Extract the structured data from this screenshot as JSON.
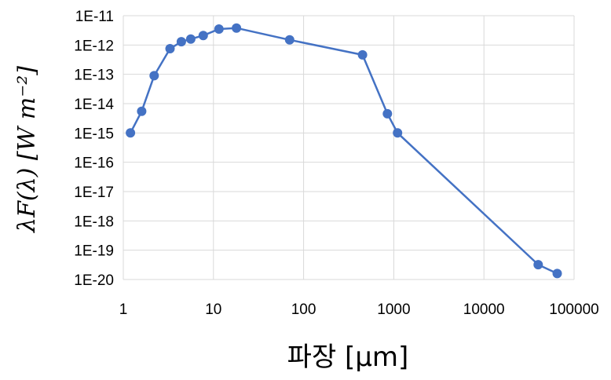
{
  "chart_data": {
    "type": "scatter",
    "title": "",
    "xlabel": "파장 [μm]",
    "ylabel": "λF(λ)  [W m⁻²]",
    "x_scale": "log",
    "y_scale": "log",
    "xlim": [
      1,
      100000
    ],
    "ylim": [
      1e-20,
      1e-11
    ],
    "x_ticks": [
      "1",
      "10",
      "100",
      "1000",
      "10000",
      "100000"
    ],
    "y_ticks": [
      "1E-11",
      "1E-12",
      "1E-13",
      "1E-14",
      "1E-15",
      "1E-16",
      "1E-17",
      "1E-18",
      "1E-19",
      "1E-20"
    ],
    "grid": true,
    "legend": "none",
    "series": [
      {
        "color": "#4472c4",
        "style": "line with circle markers",
        "points": [
          {
            "x": 1.2,
            "y": 1e-15
          },
          {
            "x": 1.6,
            "y": 5.5e-15
          },
          {
            "x": 2.2,
            "y": 9e-14
          },
          {
            "x": 3.3,
            "y": 7.5e-13
          },
          {
            "x": 4.4,
            "y": 1.3e-12
          },
          {
            "x": 5.6,
            "y": 1.6e-12
          },
          {
            "x": 7.7,
            "y": 2.1e-12
          },
          {
            "x": 11.5,
            "y": 3.5e-12
          },
          {
            "x": 18,
            "y": 3.8e-12
          },
          {
            "x": 70,
            "y": 1.5e-12
          },
          {
            "x": 450,
            "y": 4.6e-13
          },
          {
            "x": 850,
            "y": 4.5e-15
          },
          {
            "x": 1100,
            "y": 1e-15
          },
          {
            "x": 40000,
            "y": 3.2e-20
          },
          {
            "x": 65000,
            "y": 1.6e-20
          }
        ]
      }
    ]
  }
}
